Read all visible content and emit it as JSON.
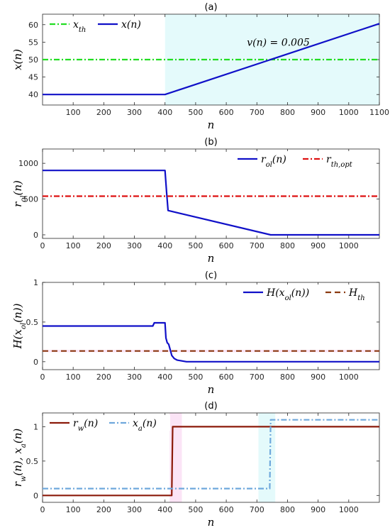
{
  "chart_data": [
    {
      "id": "a",
      "type": "line",
      "title": "(a)",
      "xlabel": "n",
      "ylabel": "x(n)",
      "xlim": [
        0,
        1100
      ],
      "ylim": [
        37,
        63
      ],
      "xticks": [
        100,
        200,
        300,
        400,
        500,
        600,
        700,
        800,
        900,
        1000,
        1100
      ],
      "yticks": [
        40,
        45,
        50,
        55,
        60
      ],
      "grid": false,
      "legend_position": "top-left",
      "shaded_regions": [
        {
          "x": [
            400,
            1100
          ],
          "color": "#e4fafb"
        }
      ],
      "annotations": [
        {
          "text": "v(n) = 0.005",
          "x": 770,
          "y": 54
        }
      ],
      "series": [
        {
          "name": "x_th",
          "legend": "x_{th}",
          "style": "dashdot",
          "color": "#22dd22",
          "x": [
            0,
            1100
          ],
          "y": [
            50,
            50
          ]
        },
        {
          "name": "x(n)",
          "legend": "x(n)",
          "style": "solid",
          "color": "#1010c8",
          "x": [
            0,
            400,
            1100
          ],
          "y": [
            40,
            40,
            60.3
          ]
        }
      ]
    },
    {
      "id": "b",
      "type": "line",
      "title": "(b)",
      "xlabel": "n",
      "ylabel": "r_ol(n)",
      "xlim": [
        0,
        1100
      ],
      "ylim": [
        -50,
        1200
      ],
      "xticks": [
        0,
        100,
        200,
        300,
        400,
        500,
        600,
        700,
        800,
        900,
        1000
      ],
      "yticks": [
        0,
        500,
        1000
      ],
      "grid": false,
      "legend_position": "top-right",
      "series": [
        {
          "name": "r_ol(n)",
          "legend": "r_{ol}(n)",
          "style": "solid",
          "color": "#1010c8",
          "x": [
            0,
            400,
            405,
            410,
            745,
            1100
          ],
          "y": [
            900,
            900,
            600,
            340,
            0,
            0
          ]
        },
        {
          "name": "r_th,opt",
          "legend": "r_{th,opt}",
          "style": "dashdot",
          "color": "#dd1111",
          "x": [
            0,
            1100
          ],
          "y": [
            540,
            540
          ]
        }
      ]
    },
    {
      "id": "c",
      "type": "line",
      "title": "(c)",
      "xlabel": "n",
      "ylabel": "H(x_ol(n))",
      "xlim": [
        0,
        1100
      ],
      "ylim": [
        -0.1,
        1.0
      ],
      "xticks": [
        0,
        100,
        200,
        300,
        400,
        500,
        600,
        700,
        800,
        900,
        1000
      ],
      "yticks": [
        0,
        0.5,
        1
      ],
      "grid": false,
      "legend_position": "top-right",
      "shaded_regions": [
        {
          "y": [
            0.12,
            0.15
          ],
          "color": "#fbe4f6"
        }
      ],
      "series": [
        {
          "name": "H(x_ol(n))",
          "legend": "H(x_{ol}(n))",
          "style": "solid",
          "color": "#1010c8",
          "x": [
            0,
            360,
            365,
            400,
            403,
            407,
            412,
            417,
            422,
            430,
            440,
            455,
            470,
            500,
            1100
          ],
          "y": [
            0.45,
            0.45,
            0.49,
            0.49,
            0.3,
            0.24,
            0.22,
            0.15,
            0.08,
            0.04,
            0.02,
            0.01,
            0.0,
            0.0,
            0.0
          ]
        },
        {
          "name": "H_th",
          "legend": "H_{th}",
          "style": "dashed",
          "color": "#8b3a10",
          "x": [
            0,
            1100
          ],
          "y": [
            0.135,
            0.135
          ]
        }
      ]
    },
    {
      "id": "d",
      "type": "line",
      "title": "(d)",
      "xlabel": "n",
      "ylabel": "r_w(n), x_a(n)",
      "xlim": [
        0,
        1100
      ],
      "ylim": [
        -0.1,
        1.2
      ],
      "xticks": [
        0,
        100,
        200,
        300,
        400,
        500,
        600,
        700,
        800,
        900,
        1000
      ],
      "yticks": [
        0,
        0.5,
        1
      ],
      "grid": false,
      "legend_position": "top-left",
      "shaded_regions": [
        {
          "x": [
            415,
            455
          ],
          "color": "#fbe4f6"
        },
        {
          "x": [
            705,
            760
          ],
          "color": "#e4fafb"
        }
      ],
      "series": [
        {
          "name": "r_w(n)",
          "legend": "r_w(n)",
          "style": "solid",
          "color": "#8b1a0a",
          "x": [
            0,
            422,
            425,
            1100
          ],
          "y": [
            0,
            0,
            1,
            1
          ]
        },
        {
          "name": "x_a(n)",
          "legend": "x_a(n)",
          "style": "dashdot",
          "color": "#6fa8dc",
          "x": [
            0,
            742,
            745,
            1100
          ],
          "y": [
            0.1,
            0.1,
            1.1,
            1.1
          ]
        }
      ]
    }
  ]
}
